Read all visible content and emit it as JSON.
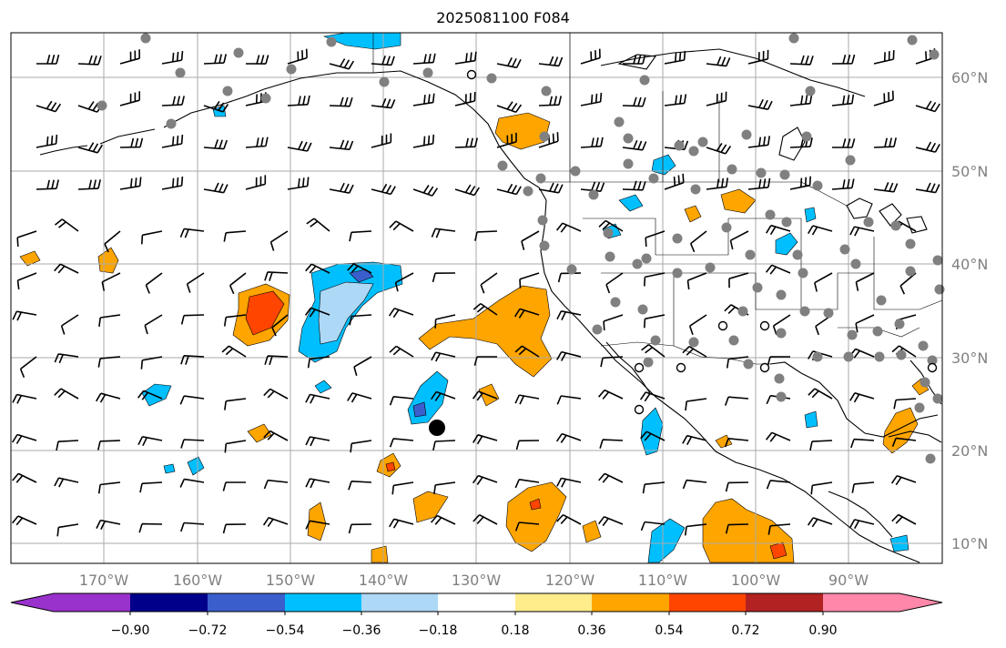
{
  "title": "2025081100 F084",
  "lat_labels": [
    "60°N",
    "50°N",
    "40°N",
    "30°N",
    "20°N",
    "10°N"
  ],
  "lon_labels": [
    "170°W",
    "160°W",
    "150°W",
    "140°W",
    "130°W",
    "120°W",
    "110°W",
    "100°W",
    "90°W"
  ],
  "colorbar": {
    "ticks": [
      "−0.90",
      "−0.72",
      "−0.54",
      "−0.36",
      "−0.18",
      "0.18",
      "0.36",
      "0.54",
      "0.72",
      "0.90"
    ],
    "colors": [
      "#9932cc",
      "#00008b",
      "#3a5fcd",
      "#00bfff",
      "#add8f6",
      "#ffffff",
      "#ffec8b",
      "#ffa500",
      "#ff4500",
      "#b22222",
      "#ff88aa"
    ]
  },
  "colors": {
    "land_outline": "#000000",
    "grid": "#aaaaaa",
    "station_dot": "#808080",
    "label_gray": "#808080"
  }
}
